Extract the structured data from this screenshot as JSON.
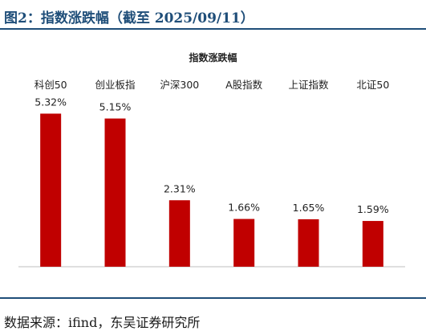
{
  "figure": {
    "title": "图2：指数涨跌幅（截至 2025/09/11）",
    "source": "数据来源：ifind，东吴证券研究所"
  },
  "colors": {
    "bar": "#c00000",
    "rule": "#1f4e79",
    "axis": "#bfbfbf"
  },
  "chart_data": {
    "type": "bar",
    "title": "指数涨跌幅",
    "categories": [
      "科创50",
      "创业板指",
      "沪深300",
      "A股指数",
      "上证指数",
      "北证50"
    ],
    "values": [
      5.32,
      5.15,
      2.31,
      1.66,
      1.65,
      1.59
    ],
    "value_labels": [
      "5.32%",
      "5.15%",
      "2.31%",
      "1.66%",
      "1.65%",
      "1.59%"
    ],
    "category_labels_position": "top",
    "ylim": [
      0,
      5.5
    ],
    "grid": false,
    "legend": "none"
  }
}
